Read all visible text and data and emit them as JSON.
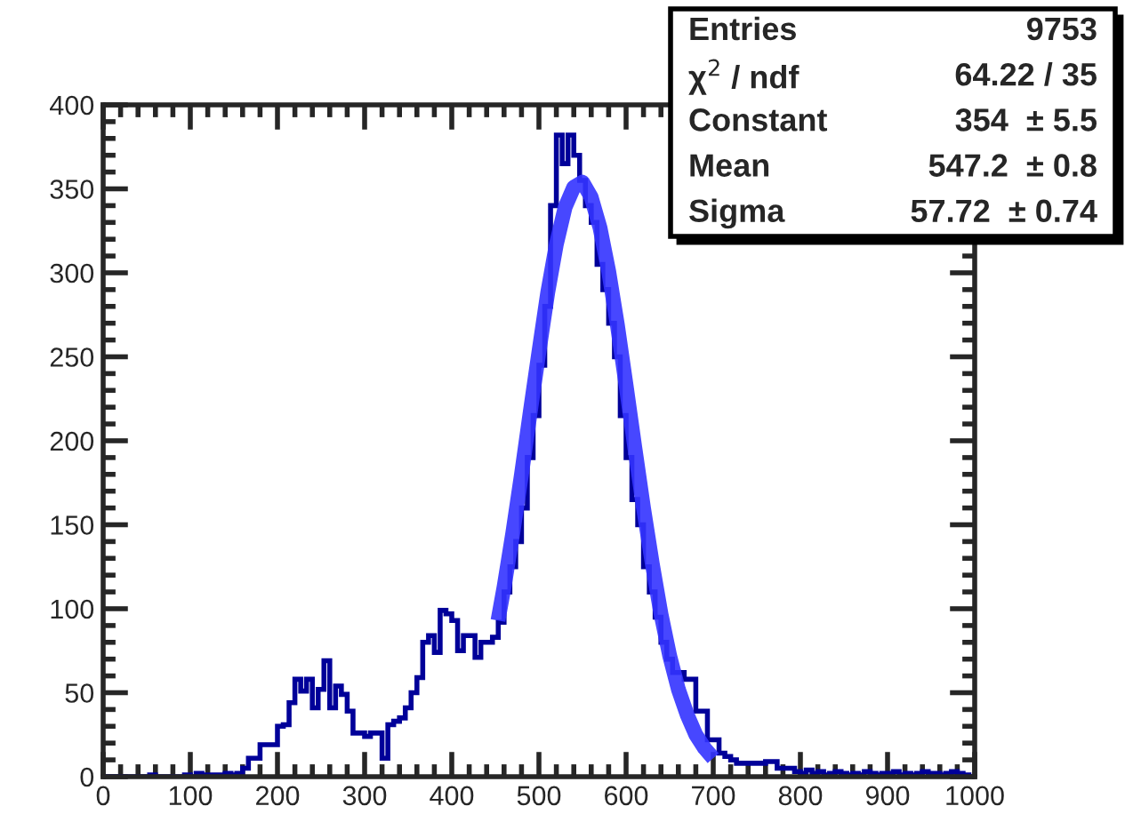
{
  "chart_data": {
    "type": "histogram",
    "bins": [
      0,
      6.67,
      13.33,
      20,
      26.67,
      33.33,
      40,
      46.67,
      53.33,
      60,
      66.67,
      73.33,
      80,
      86.67,
      93.33,
      100,
      106.67,
      113.33,
      120,
      126.67,
      133.33,
      140,
      146.67,
      153.33,
      160,
      166.67,
      173.33,
      180,
      186.67,
      193.33,
      200,
      206.67,
      213.33,
      220,
      226.67,
      233.33,
      240,
      246.67,
      253.33,
      260,
      266.67,
      273.33,
      280,
      286.67,
      293.33,
      300,
      306.67,
      313.33,
      320,
      326.67,
      333.33,
      340,
      346.67,
      353.33,
      360,
      366.67,
      373.33,
      380,
      386.67,
      393.33,
      400,
      406.67,
      413.33,
      420,
      426.67,
      433.33,
      440,
      446.67,
      453.33,
      460,
      466.67,
      473.33,
      480,
      486.67,
      493.33,
      500,
      506.67,
      513.33,
      520,
      526.67,
      533.33,
      540,
      546.67,
      553.33,
      560,
      566.67,
      573.33,
      580,
      586.67,
      593.33,
      600,
      606.67,
      613.33,
      620,
      626.67,
      633.33,
      640,
      646.67,
      653.33,
      660,
      666.67,
      673.33,
      680,
      686.67,
      693.33,
      700,
      706.67,
      713.33,
      720,
      726.67,
      733.33,
      740,
      746.67,
      753.33,
      760,
      766.67,
      773.33,
      780,
      786.67,
      793.33,
      800,
      806.67,
      813.33,
      820,
      826.67,
      833.33,
      840,
      846.67,
      853.33,
      860,
      866.67,
      873.33,
      880,
      886.67,
      893.33,
      900,
      906.67,
      913.33,
      920,
      926.67,
      933.33,
      940,
      946.67,
      953.33,
      960,
      966.67,
      973.33,
      980,
      986.67,
      993.33,
      1000
    ],
    "values": [
      0,
      0,
      0,
      0,
      0,
      0,
      0,
      0,
      1,
      0,
      0,
      0,
      0,
      0,
      1,
      0,
      2,
      1,
      1,
      1,
      1,
      2,
      1,
      2,
      5,
      11,
      11,
      19,
      19,
      19,
      30,
      31,
      44,
      58,
      51,
      58,
      41,
      52,
      69,
      41,
      54,
      49,
      39,
      26,
      26,
      24,
      26,
      26,
      11,
      31,
      33,
      35,
      41,
      50,
      59,
      80,
      84,
      74,
      99,
      97,
      93,
      75,
      84,
      84,
      71,
      80,
      80,
      83,
      92,
      110,
      125,
      140,
      160,
      190,
      215,
      245,
      280,
      340,
      382,
      365,
      382,
      370,
      355,
      340,
      330,
      305,
      290,
      270,
      250,
      215,
      190,
      165,
      150,
      125,
      110,
      95,
      80,
      70,
      62,
      62,
      58,
      58,
      39,
      39,
      22,
      22,
      14,
      12,
      10,
      8,
      8,
      8,
      8,
      8,
      9,
      9,
      5,
      5,
      5,
      3,
      2,
      4,
      2,
      3,
      1,
      2,
      3,
      2,
      1,
      2,
      1,
      3,
      2,
      1,
      2,
      2,
      3,
      1,
      2,
      1,
      2,
      3,
      2,
      2,
      1,
      2,
      3,
      2,
      1,
      0
    ],
    "color": "#000099",
    "series": [
      {
        "type": "line",
        "color": "#3333ff",
        "x": [
          453,
          460,
          470,
          480,
          490,
          500,
          510,
          520,
          530,
          540,
          550,
          560,
          570,
          580,
          590,
          600,
          610,
          620,
          630,
          640,
          650,
          660,
          670,
          680,
          690,
          700
        ],
        "values": [
          93,
          113,
          145,
          180,
          217,
          253,
          288,
          317,
          339,
          351,
          354,
          345,
          327,
          301,
          269,
          233,
          196,
          160,
          127,
          97,
          72,
          52,
          37,
          25,
          17,
          11
        ]
      }
    ],
    "xlim": [
      0,
      1000
    ],
    "xticks": [
      0,
      100,
      200,
      300,
      400,
      500,
      600,
      700,
      800,
      900,
      1000
    ],
    "ylim": [
      0,
      400
    ],
    "yticks": [
      0,
      50,
      100,
      150,
      200,
      250,
      300,
      350,
      400
    ],
    "grid": false,
    "legend": false,
    "annotations": [
      "Entries",
      "9753",
      "χ$^{2}$ / ndf",
      "64.22 / 35",
      "Constant",
      "354  ± 5.5",
      "Mean",
      "547.2  ± 0.8",
      "Sigma",
      "57.72  ± 0.74"
    ]
  }
}
